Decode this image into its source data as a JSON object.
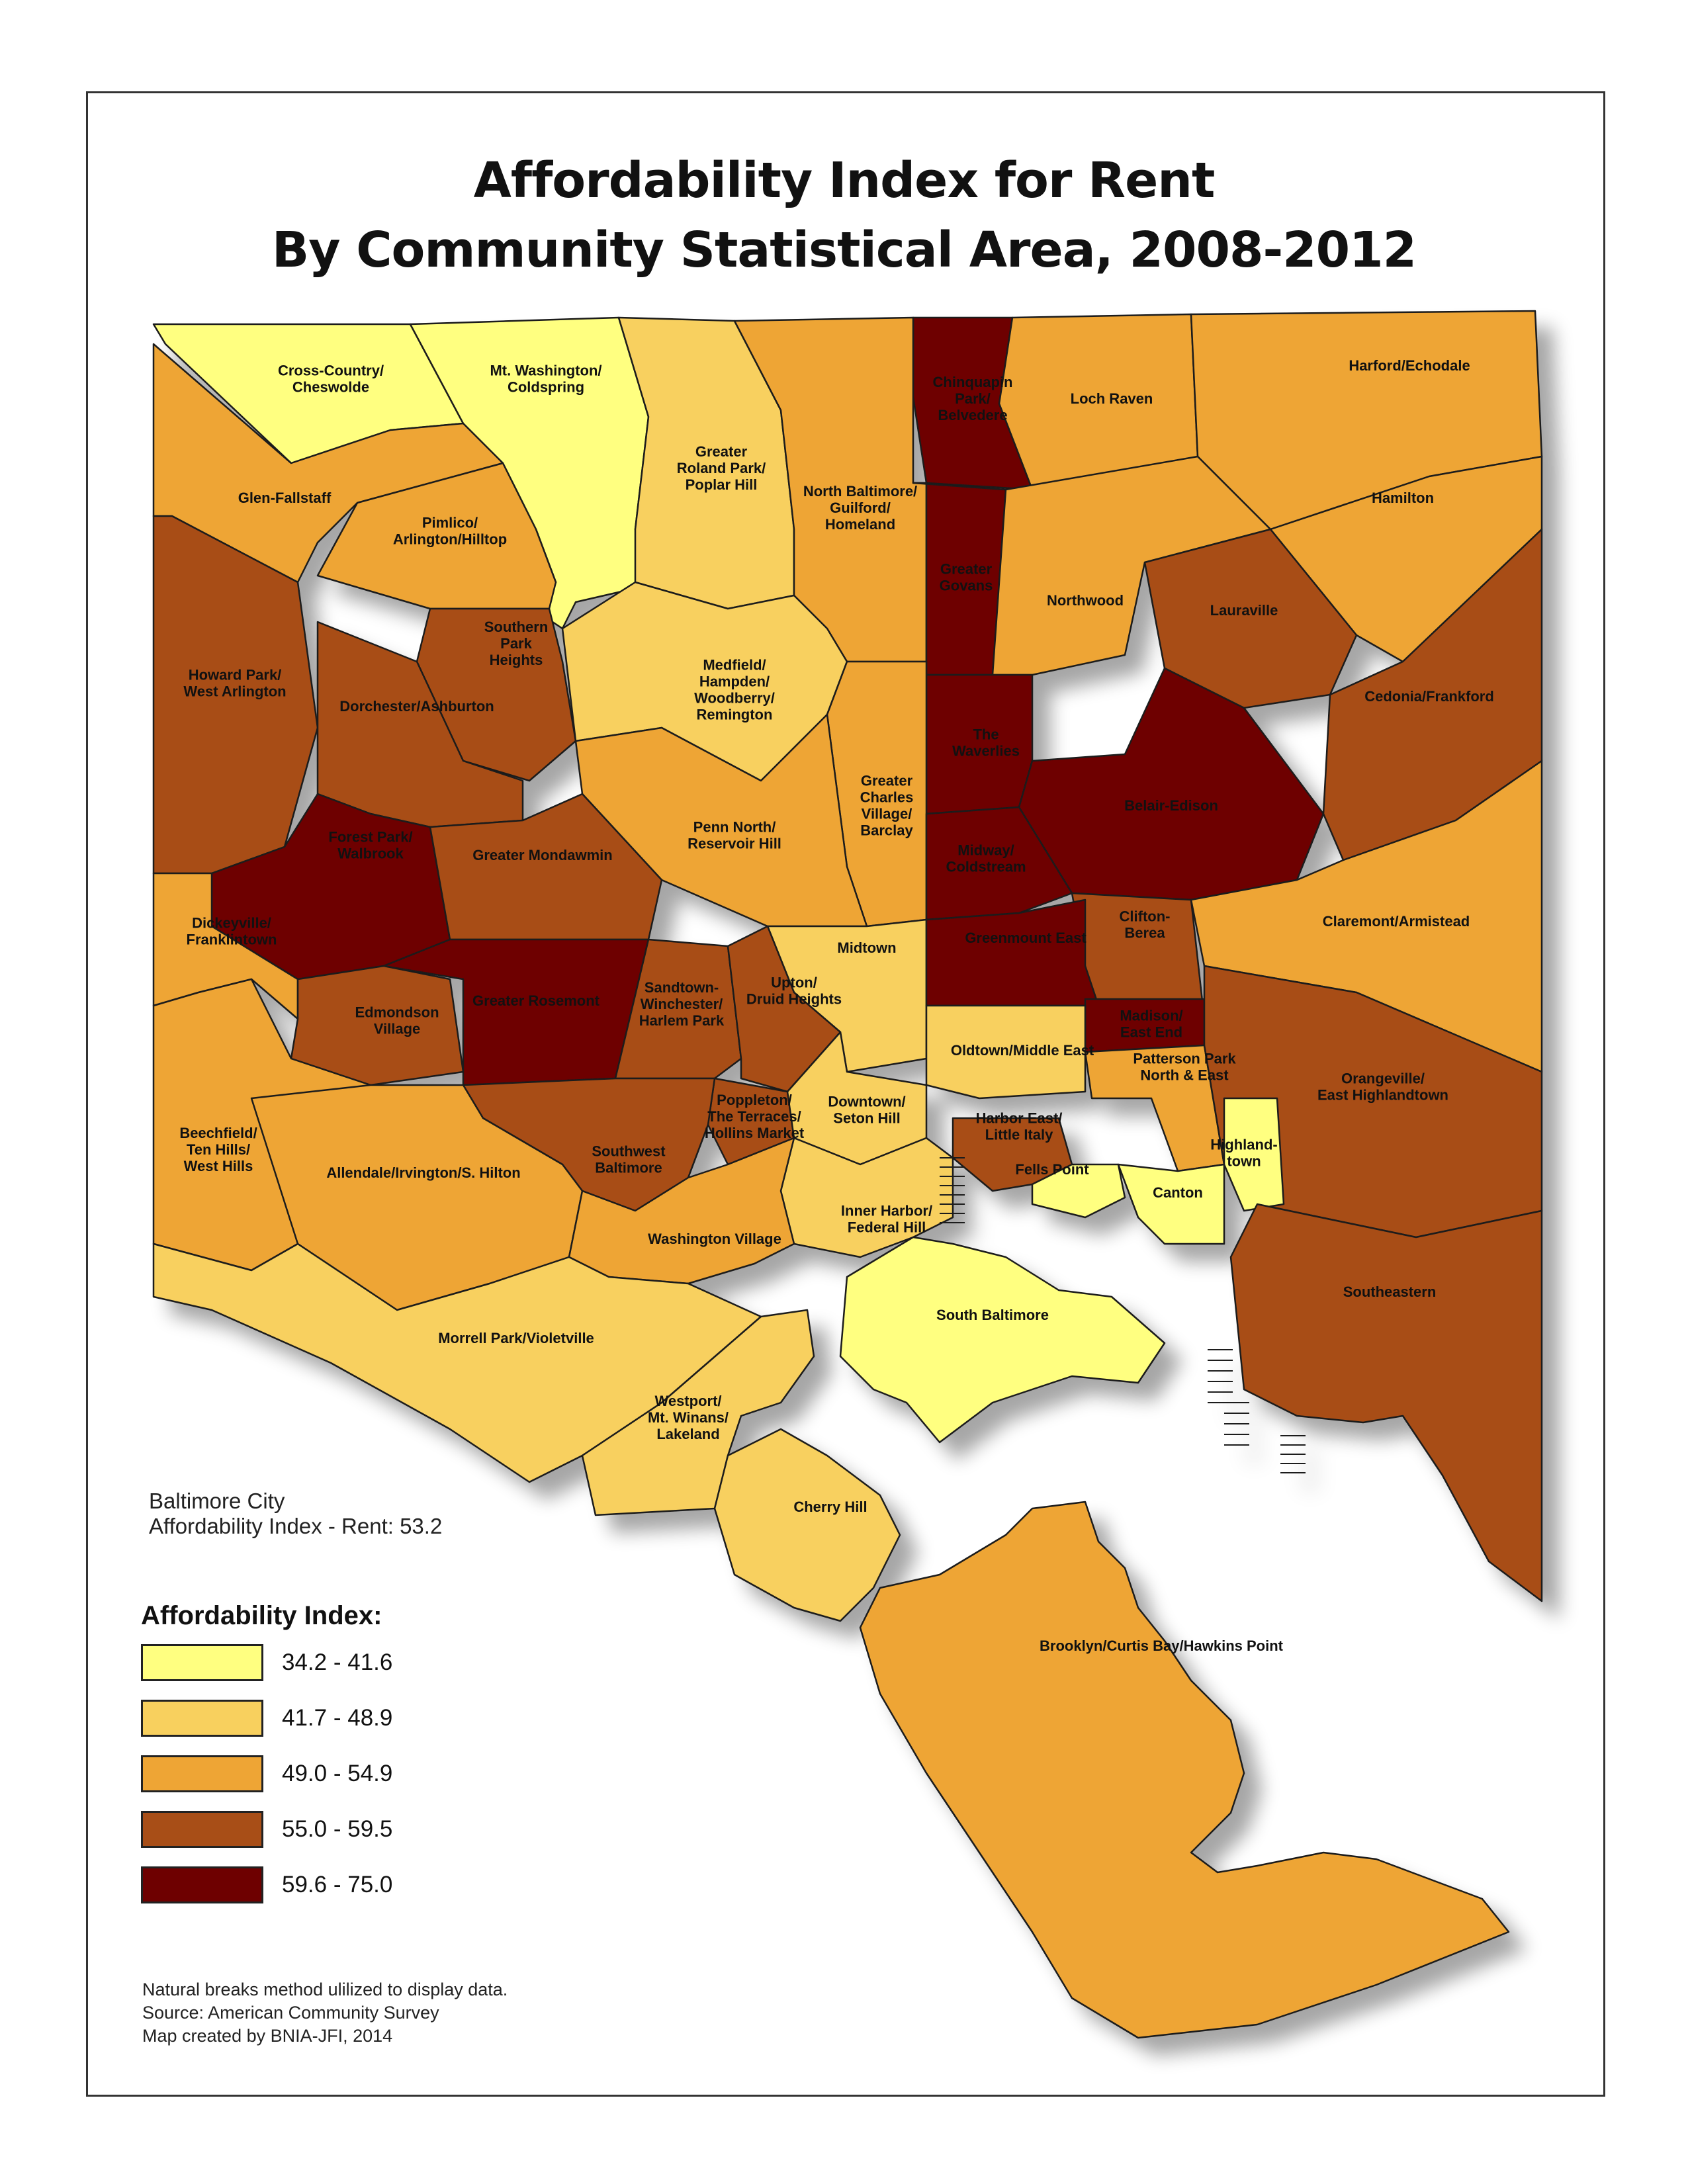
{
  "title": {
    "line1": "Affordability Index for Rent",
    "line2": "By Community Statistical Area, 2008-2012"
  },
  "city_summary": {
    "line1": "Baltimore City",
    "line2": "Affordability Index - Rent: 53.2"
  },
  "legend": {
    "title": "Affordability Index:",
    "items": [
      {
        "label": "34.2 - 41.6",
        "color": "#ffff80"
      },
      {
        "label": "41.7 - 48.9",
        "color": "#f8d05e"
      },
      {
        "label": "49.0 - 54.9",
        "color": "#eea535"
      },
      {
        "label": "55.0 - 59.5",
        "color": "#a84e17"
      },
      {
        "label": "59.6 - 75.0",
        "color": "#6e0000"
      }
    ]
  },
  "notes": {
    "line1": "Natural breaks method ulilized to display data.",
    "line2": "Source: American Community Survey",
    "line3": "Map created by BNIA-JFI, 2014"
  },
  "areas": {
    "cross_country": [
      "Cross-Country/",
      "Cheswolde"
    ],
    "mt_washington": [
      "Mt. Washington/",
      "Coldspring"
    ],
    "roland_park": [
      "Greater",
      "Roland Park/",
      "Poplar Hill"
    ],
    "chinquapin": [
      "Chinquapin",
      "Park/",
      "Belvedere"
    ],
    "loch_raven": [
      "Loch Raven"
    ],
    "harford": [
      "Harford/Echodale"
    ],
    "glen_fallstaff": [
      "Glen-Fallstaff"
    ],
    "pimlico": [
      "Pimlico/",
      "Arlington/Hilltop"
    ],
    "north_baltimore": [
      "North Baltimore/",
      "Guilford/",
      "Homeland"
    ],
    "hamilton": [
      "Hamilton"
    ],
    "greater_govans": [
      "Greater",
      "Govans"
    ],
    "northwood": [
      "Northwood"
    ],
    "lauraville": [
      "Lauraville"
    ],
    "southern_park": [
      "Southern",
      "Park",
      "Heights"
    ],
    "howard_park": [
      "Howard Park/",
      "West Arlington"
    ],
    "dorchester": [
      "Dorchester/Ashburton"
    ],
    "medfield": [
      "Medfield/",
      "Hampden/",
      "Woodberry/",
      "Remington"
    ],
    "waverlies": [
      "The",
      "Waverlies"
    ],
    "cedonia": [
      "Cedonia/Frankford"
    ],
    "charles_village": [
      "Greater",
      "Charles",
      "Village/",
      "Barclay"
    ],
    "belair_edison": [
      "Belair-Edison"
    ],
    "forest_park": [
      "Forest Park/",
      "Walbrook"
    ],
    "penn_north": [
      "Penn North/",
      "Reservoir Hill"
    ],
    "mondawmin": [
      "Greater Mondawmin"
    ],
    "midway": [
      "Midway/",
      "Coldstream"
    ],
    "clifton_berea": [
      "Clifton-",
      "Berea"
    ],
    "claremont": [
      "Claremont/Armistead"
    ],
    "dickeyville": [
      "Dickeyville/",
      "Franklintown"
    ],
    "midtown": [
      "Midtown"
    ],
    "greenmount": [
      "Greenmount East"
    ],
    "edmondson": [
      "Edmondson",
      "Village"
    ],
    "rosemont": [
      "Greater Rosemont"
    ],
    "sandtown": [
      "Sandtown-",
      "Winchester/",
      "Harlem Park"
    ],
    "upton": [
      "Upton/",
      "Druid Heights"
    ],
    "madison": [
      "Madison/",
      "East End"
    ],
    "oldtown": [
      "Oldtown/Middle East"
    ],
    "patterson_park": [
      "Patterson Park",
      "North & East"
    ],
    "orangeville": [
      "Orangeville/",
      "East Highlandtown"
    ],
    "poppleton": [
      "Poppleton/",
      "The Terraces/",
      "Hollins Market"
    ],
    "downtown": [
      "Downtown/",
      "Seton Hill"
    ],
    "harbor_east": [
      "Harbor East/",
      "Little Italy"
    ],
    "beechfield": [
      "Beechfield/",
      "Ten Hills/",
      "West Hills"
    ],
    "southwest": [
      "Southwest",
      "Baltimore"
    ],
    "highlandtown": [
      "Highland-",
      "town"
    ],
    "allendale": [
      "Allendale/Irvington/S. Hilton"
    ],
    "fells_point": [
      "Fells Point"
    ],
    "canton": [
      "Canton"
    ],
    "inner_harbor": [
      "Inner Harbor/",
      "Federal Hill"
    ],
    "washington_village": [
      "Washington Village"
    ],
    "southeastern": [
      "Southeastern"
    ],
    "south_baltimore": [
      "South Baltimore"
    ],
    "morrell_park": [
      "Morrell Park/Violetville"
    ],
    "westport": [
      "Westport/",
      "Mt. Winans/",
      "Lakeland"
    ],
    "cherry_hill": [
      "Cherry Hill"
    ],
    "brooklyn": [
      "Brooklyn/Curtis Bay/Hawkins Point"
    ]
  }
}
